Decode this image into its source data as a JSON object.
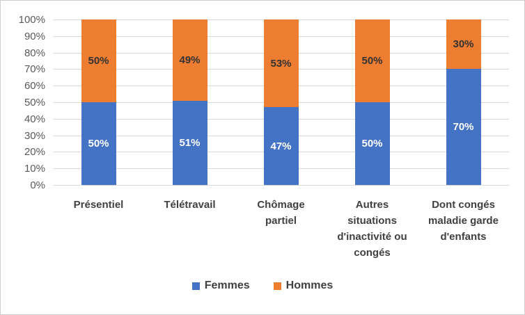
{
  "chart_data": {
    "type": "bar",
    "subtype": "stacked-100-percent",
    "title": "",
    "xlabel": "",
    "ylabel": "",
    "categories": [
      "Présentiel",
      "Télétravail",
      "Chômage partiel",
      "Autres situations d'inactivité ou congés",
      "Dont congés maladie garde d'enfants"
    ],
    "category_label_lines": [
      [
        "Présentiel"
      ],
      [
        "Télétravail"
      ],
      [
        "Chômage",
        "partiel"
      ],
      [
        "Autres",
        "situations",
        "d'inactivité ou",
        "congés"
      ],
      [
        "Dont congés",
        "maladie garde",
        "d'enfants"
      ]
    ],
    "series": [
      {
        "name": "Femmes",
        "color": "#4472c4",
        "label_color": "#ffffff",
        "values": [
          50,
          51,
          47,
          50,
          70
        ],
        "data_labels": [
          "50%",
          "51%",
          "47%",
          "50%",
          "70%"
        ]
      },
      {
        "name": "Hommes",
        "color": "#ed7d31",
        "label_color": "#333333",
        "values": [
          50,
          49,
          53,
          50,
          30
        ],
        "data_labels": [
          "50%",
          "49%",
          "53%",
          "50%",
          "30%"
        ]
      }
    ],
    "y_axis": {
      "min": 0,
      "max": 100,
      "step": 10,
      "tick_labels": [
        "0%",
        "10%",
        "20%",
        "30%",
        "40%",
        "50%",
        "60%",
        "70%",
        "80%",
        "90%",
        "100%"
      ]
    },
    "grid": true,
    "gridline_color": "#d9d9d9",
    "axis_text_color": "#595959",
    "legend_position": "bottom",
    "legend": [
      {
        "label": "Femmes",
        "color": "#4472c4"
      },
      {
        "label": "Hommes",
        "color": "#ed7d31"
      }
    ]
  }
}
